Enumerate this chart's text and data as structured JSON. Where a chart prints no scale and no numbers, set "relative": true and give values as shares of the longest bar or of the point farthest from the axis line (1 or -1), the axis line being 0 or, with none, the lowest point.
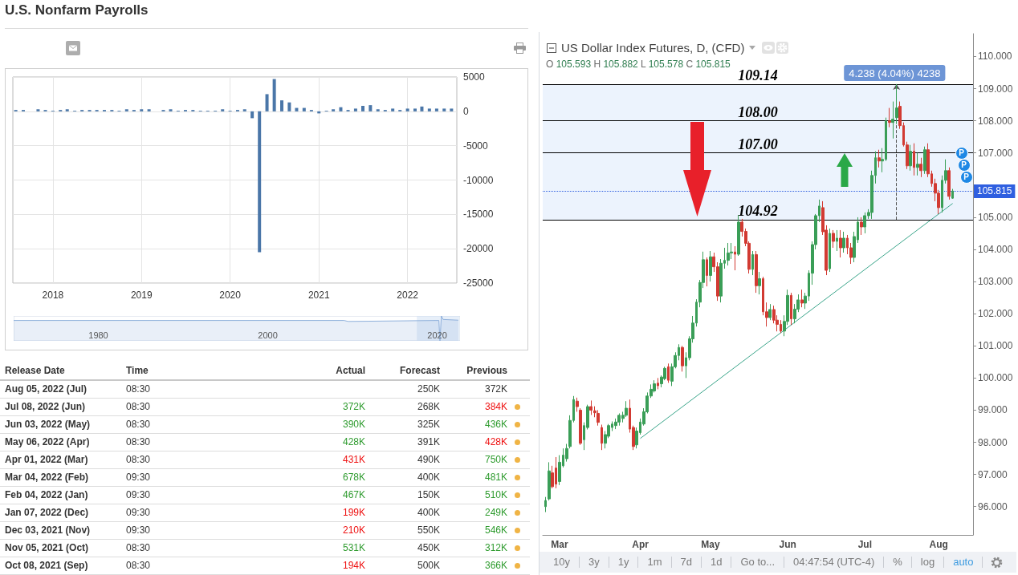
{
  "chart_data": [
    {
      "type": "bar",
      "title": "U.S. Nonfarm Payrolls",
      "x": [
        "2017-08",
        "2017-09",
        "2017-10",
        "2017-11",
        "2017-12",
        "2018-01",
        "2018-02",
        "2018-03",
        "2018-04",
        "2018-05",
        "2018-06",
        "2018-07",
        "2018-08",
        "2018-09",
        "2018-10",
        "2018-11",
        "2018-12",
        "2019-01",
        "2019-02",
        "2019-03",
        "2019-04",
        "2019-05",
        "2019-06",
        "2019-07",
        "2019-08",
        "2019-09",
        "2019-10",
        "2019-11",
        "2019-12",
        "2020-01",
        "2020-02",
        "2020-03",
        "2020-04",
        "2020-05",
        "2020-06",
        "2020-07",
        "2020-08",
        "2020-09",
        "2020-10",
        "2020-11",
        "2020-12",
        "2021-01",
        "2021-02",
        "2021-03",
        "2021-04",
        "2021-05",
        "2021-06",
        "2021-07",
        "2021-08",
        "2021-09",
        "2021-10",
        "2021-11",
        "2021-12",
        "2022-01",
        "2022-02",
        "2022-03",
        "2022-04",
        "2022-05",
        "2022-06",
        "2022-07"
      ],
      "values": [
        200,
        200,
        0,
        300,
        200,
        100,
        200,
        300,
        100,
        200,
        200,
        200,
        200,
        200,
        100,
        300,
        200,
        300,
        300,
        0,
        200,
        300,
        100,
        200,
        200,
        100,
        100,
        100,
        300,
        100,
        200,
        300,
        -1000,
        -20500,
        2500,
        4700,
        1600,
        1300,
        500,
        500,
        200,
        -300,
        100,
        300,
        600,
        200,
        400,
        800,
        900,
        300,
        200,
        400,
        200,
        400,
        400,
        700,
        400,
        400,
        400,
        400
      ],
      "color": "#4a76a8",
      "xlim": [
        "2017-07-20",
        "2022-07-23"
      ],
      "xticks": [
        "2018",
        "2019",
        "2020",
        "2021",
        "2022"
      ],
      "ylim": [
        -25000,
        5000
      ],
      "yticks": [
        -25000,
        -20000,
        -15000,
        -10000,
        -5000,
        0,
        5000
      ],
      "grid": true
    },
    {
      "type": "area",
      "relative": true,
      "x": [
        1970,
        2009,
        2009.5,
        2020.2,
        2020.33,
        2020.5,
        2020.7,
        2022.5
      ],
      "values": [
        0.82,
        0.82,
        0.78,
        0.82,
        0,
        1,
        0.86,
        0.83
      ],
      "color": "#8fb0db",
      "xlim": [
        1970,
        2022.7
      ],
      "xticks": [
        1980,
        2000,
        2020
      ],
      "bands": [
        {
          "axis": "x",
          "from": 2017.6,
          "to": 2022.6,
          "color": "#cfe0f4"
        }
      ]
    },
    {
      "type": "other",
      "ylabel": "Release Date",
      "categories": [
        "Aug 05, 2022 (Jul)",
        "Jul 08, 2022 (Jun)",
        "Jun 03, 2022 (May)",
        "May 06, 2022 (Apr)",
        "Apr 01, 2022 (Mar)",
        "Mar 04, 2022 (Feb)",
        "Feb 04, 2022 (Jan)",
        "Jan 07, 2022 (Dec)",
        "Dec 03, 2021 (Nov)",
        "Nov 05, 2021 (Oct)",
        "Oct 08, 2021 (Sep)"
      ],
      "series": [
        {
          "name": "Time",
          "color": "#333333",
          "values": [
            8.5,
            8.5,
            8.5,
            8.5,
            8.5,
            9.5,
            9.5,
            9.5,
            9.5,
            8.5,
            8.5
          ],
          "value_labels": [
            "08:30",
            "08:30",
            "08:30",
            "08:30",
            "08:30",
            "09:30",
            "09:30",
            "09:30",
            "09:30",
            "08:30",
            "08:30"
          ]
        },
        {
          "name": "Actual",
          "values": [
            null,
            372,
            390,
            428,
            431,
            678,
            467,
            199,
            210,
            531,
            194
          ],
          "value_labels": [
            null,
            "372K",
            "390K",
            "428K",
            "431K",
            "678K",
            "467K",
            "199K",
            "210K",
            "531K",
            "194K"
          ],
          "colors": [
            null,
            "#2e9b2e",
            "#2e9b2e",
            "#2e9b2e",
            "#ee1111",
            "#2e9b2e",
            "#2e9b2e",
            "#ee1111",
            "#ee1111",
            "#2e9b2e",
            "#ee1111"
          ]
        },
        {
          "name": "Forecast",
          "color": "#333333",
          "values": [
            250,
            268,
            325,
            391,
            490,
            400,
            150,
            400,
            550,
            450,
            500
          ],
          "value_labels": [
            "250K",
            "268K",
            "325K",
            "391K",
            "490K",
            "400K",
            "150K",
            "400K",
            "550K",
            "450K",
            "500K"
          ]
        },
        {
          "name": "Previous",
          "values": [
            372,
            384,
            436,
            428,
            750,
            481,
            510,
            249,
            546,
            312,
            366
          ],
          "value_labels": [
            "372K",
            "384K",
            "436K",
            "428K",
            "750K",
            "481K",
            "510K",
            "249K",
            "546K",
            "312K",
            "366K"
          ],
          "colors": [
            "#333333",
            "#ee1111",
            "#2e9b2e",
            "#ee1111",
            "#2e9b2e",
            "#2e9b2e",
            "#2e9b2e",
            "#2e9b2e",
            "#2e9b2e",
            "#2e9b2e",
            "#2e9b2e"
          ]
        }
      ]
    },
    {
      "type": "candlestick",
      "title": "US Dollar Index Futures, D, (CFD)",
      "subtitle": "O 105.593 H 105.882 L 105.578 C 105.815",
      "categories": [
        null,
        null,
        null,
        null,
        "Mar",
        null,
        null,
        null,
        null,
        null,
        null,
        null,
        null,
        null,
        null,
        null,
        null,
        null,
        null,
        null,
        null,
        null,
        null,
        null,
        null,
        null,
        null,
        "Apr",
        null,
        null,
        null,
        null,
        null,
        null,
        null,
        null,
        null,
        null,
        null,
        null,
        null,
        null,
        null,
        null,
        null,
        null,
        null,
        "May",
        null,
        null,
        null,
        null,
        null,
        null,
        null,
        null,
        null,
        null,
        null,
        null,
        null,
        null,
        null,
        null,
        null,
        null,
        null,
        null,
        null,
        "Jun",
        null,
        null,
        null,
        null,
        null,
        null,
        null,
        null,
        null,
        null,
        null,
        null,
        null,
        null,
        null,
        null,
        null,
        null,
        null,
        null,
        null,
        "Jul",
        null,
        null,
        null,
        null,
        null,
        null,
        null,
        null,
        null,
        null,
        null,
        null,
        null,
        null,
        null,
        null,
        null,
        null,
        null,
        null,
        "Aug",
        null,
        null,
        null,
        null
      ],
      "ohlc": [
        [
          96.0,
          96.3,
          95.83,
          96.19
        ],
        [
          96.24,
          97.38,
          96.19,
          97.11
        ],
        [
          97.05,
          97.27,
          96.57,
          96.62
        ],
        [
          97.2,
          97.54,
          96.57,
          96.7
        ],
        [
          96.78,
          97.6,
          96.67,
          97.38
        ],
        [
          97.27,
          97.81,
          97.22,
          97.6
        ],
        [
          97.49,
          97.95,
          97.4,
          97.81
        ],
        [
          97.87,
          98.84,
          97.81,
          98.68
        ],
        [
          98.68,
          99.44,
          98.62,
          99.33
        ],
        [
          99.28,
          99.39,
          98.95,
          99.11
        ],
        [
          99.0,
          99.06,
          97.92,
          97.97
        ],
        [
          98.08,
          98.62,
          97.76,
          98.52
        ],
        [
          98.46,
          99.17,
          98.4,
          99.11
        ],
        [
          99.11,
          99.3,
          98.85,
          99.0
        ],
        [
          98.98,
          99.12,
          98.78,
          98.92
        ],
        [
          98.9,
          99.0,
          98.52,
          98.62
        ],
        [
          98.46,
          98.55,
          97.76,
          97.97
        ],
        [
          97.97,
          98.35,
          97.81,
          98.24
        ],
        [
          98.19,
          98.57,
          98.13,
          98.52
        ],
        [
          98.46,
          98.65,
          98.35,
          98.57
        ],
        [
          98.52,
          98.74,
          98.41,
          98.63
        ],
        [
          98.63,
          98.9,
          98.52,
          98.84
        ],
        [
          98.74,
          98.95,
          98.62,
          98.84
        ],
        [
          98.84,
          99.28,
          98.79,
          99.06
        ],
        [
          99.06,
          99.33,
          98.3,
          98.41
        ],
        [
          98.46,
          98.52,
          97.76,
          97.87
        ],
        [
          97.92,
          98.46,
          97.81,
          98.35
        ],
        [
          98.3,
          98.74,
          98.24,
          98.63
        ],
        [
          98.57,
          99.06,
          98.52,
          98.95
        ],
        [
          98.95,
          99.55,
          98.9,
          99.44
        ],
        [
          99.44,
          99.8,
          99.38,
          99.65
        ],
        [
          99.6,
          99.93,
          99.55,
          99.82
        ],
        [
          99.84,
          100.0,
          99.65,
          99.76
        ],
        [
          99.82,
          100.08,
          99.71,
          100.03
        ],
        [
          99.98,
          100.35,
          99.93,
          100.3
        ],
        [
          100.35,
          100.45,
          99.85,
          99.93
        ],
        [
          99.9,
          100.45,
          99.75,
          100.35
        ],
        [
          100.35,
          100.8,
          100.3,
          100.7
        ],
        [
          100.7,
          101.05,
          100.55,
          100.95
        ],
        [
          100.95,
          101.0,
          100.2,
          100.38
        ],
        [
          100.38,
          100.8,
          100.0,
          100.63
        ],
        [
          100.63,
          101.3,
          100.55,
          101.22
        ],
        [
          101.22,
          101.93,
          101.1,
          101.71
        ],
        [
          101.71,
          102.45,
          101.6,
          102.36
        ],
        [
          102.36,
          103.05,
          102.2,
          102.97
        ],
        [
          102.97,
          103.93,
          102.8,
          103.68
        ],
        [
          103.68,
          103.75,
          102.85,
          103.19
        ],
        [
          103.19,
          103.95,
          103.0,
          103.77
        ],
        [
          103.77,
          103.9,
          103.3,
          103.46
        ],
        [
          103.46,
          103.6,
          102.4,
          102.55
        ],
        [
          102.55,
          103.7,
          102.35,
          103.57
        ],
        [
          103.57,
          104.05,
          103.4,
          103.66
        ],
        [
          103.66,
          104.2,
          103.5,
          103.89
        ],
        [
          103.89,
          104.2,
          103.7,
          103.92
        ],
        [
          103.92,
          104.1,
          103.35,
          103.85
        ],
        [
          103.85,
          105.07,
          103.8,
          104.85
        ],
        [
          104.85,
          104.95,
          104.4,
          104.56
        ],
        [
          104.56,
          104.65,
          104.1,
          104.19
        ],
        [
          104.19,
          104.25,
          103.25,
          103.38
        ],
        [
          103.38,
          103.95,
          103.2,
          103.84
        ],
        [
          103.84,
          103.95,
          102.65,
          102.87
        ],
        [
          102.87,
          103.3,
          102.6,
          103.09
        ],
        [
          103.09,
          103.15,
          101.95,
          102.06
        ],
        [
          102.06,
          102.35,
          101.6,
          101.88
        ],
        [
          101.88,
          102.3,
          101.8,
          102.13
        ],
        [
          102.13,
          102.25,
          101.7,
          101.8
        ],
        [
          101.8,
          101.95,
          101.45,
          101.67
        ],
        [
          101.67,
          101.8,
          101.4,
          101.46
        ],
        [
          101.46,
          101.95,
          101.3,
          101.76
        ],
        [
          101.76,
          102.75,
          101.65,
          102.57
        ],
        [
          102.57,
          102.65,
          101.65,
          101.84
        ],
        [
          101.84,
          102.3,
          101.7,
          102.14
        ],
        [
          102.14,
          102.6,
          102.05,
          102.43
        ],
        [
          102.43,
          102.75,
          102.2,
          102.33
        ],
        [
          102.33,
          102.65,
          102.15,
          102.55
        ],
        [
          102.55,
          103.35,
          102.4,
          103.26
        ],
        [
          103.26,
          104.25,
          102.9,
          104.15
        ],
        [
          104.15,
          105.1,
          104.0,
          105.05
        ],
        [
          105.05,
          105.55,
          104.85,
          105.35
        ],
        [
          105.3,
          105.5,
          104.45,
          104.55
        ],
        [
          104.6,
          104.75,
          103.2,
          103.35
        ],
        [
          103.4,
          104.65,
          103.3,
          104.5
        ],
        [
          104.5,
          104.6,
          104.05,
          104.25
        ],
        [
          104.25,
          104.6,
          103.95,
          104.35
        ],
        [
          104.35,
          104.6,
          103.75,
          104.05
        ],
        [
          104.05,
          104.55,
          103.9,
          104.35
        ],
        [
          104.35,
          104.45,
          103.85,
          104.05
        ],
        [
          104.05,
          104.2,
          103.55,
          103.75
        ],
        [
          103.75,
          104.55,
          103.6,
          104.4
        ],
        [
          104.3,
          105.0,
          104.2,
          104.85
        ],
        [
          104.85,
          105.0,
          104.45,
          104.7
        ],
        [
          104.7,
          105.15,
          104.5,
          105.05
        ],
        [
          105.05,
          105.25,
          104.95,
          105.15
        ],
        [
          105.15,
          106.45,
          104.95,
          106.3
        ],
        [
          106.3,
          107.05,
          106.05,
          106.85
        ],
        [
          106.85,
          107.1,
          106.55,
          106.75
        ],
        [
          106.75,
          107.15,
          106.4,
          106.8
        ],
        [
          106.8,
          108.1,
          106.75,
          108.0
        ],
        [
          108.0,
          108.4,
          107.8,
          107.95
        ],
        [
          107.95,
          108.6,
          107.45,
          108.05
        ],
        [
          108.1,
          109.14,
          107.9,
          108.4
        ],
        [
          108.45,
          108.6,
          107.75,
          107.85
        ],
        [
          107.85,
          107.95,
          107.2,
          107.25
        ],
        [
          107.25,
          107.35,
          106.5,
          106.6
        ],
        [
          106.6,
          107.25,
          106.45,
          107.05
        ],
        [
          107.05,
          107.3,
          106.3,
          106.55
        ],
        [
          106.55,
          107.0,
          106.3,
          106.65
        ],
        [
          106.65,
          106.85,
          106.25,
          106.45
        ],
        [
          106.45,
          107.2,
          106.35,
          107.1
        ],
        [
          107.1,
          107.3,
          106.25,
          106.35
        ],
        [
          106.35,
          106.45,
          105.95,
          106.05
        ],
        [
          106.05,
          106.2,
          105.5,
          105.75
        ],
        [
          105.75,
          105.85,
          105.1,
          105.3
        ],
        [
          105.3,
          106.3,
          105.15,
          106.15
        ],
        [
          106.15,
          106.8,
          106.05,
          106.45
        ],
        [
          106.45,
          106.55,
          105.55,
          105.65
        ],
        [
          105.593,
          105.882,
          105.578,
          105.815
        ]
      ],
      "colors": [
        "#3a9e57",
        "#3a9e57",
        "#d23a32",
        "#d23a32",
        "#3a9e57",
        "#3a9e57",
        "#3a9e57",
        "#3a9e57",
        "#3a9e57",
        "#d23a32",
        "#d23a32",
        "#3a9e57",
        "#3a9e57",
        "#d23a32",
        "#d23a32",
        "#d23a32",
        "#d23a32",
        "#3a9e57",
        "#3a9e57",
        "#3a9e57",
        "#3a9e57",
        "#3a9e57",
        "#3a9e57",
        "#3a9e57",
        "#d23a32",
        "#d23a32",
        "#3a9e57",
        "#3a9e57",
        "#3a9e57",
        "#3a9e57",
        "#3a9e57",
        "#3a9e57",
        "#d23a32",
        "#3a9e57",
        "#3a9e57",
        "#d23a32",
        "#3a9e57",
        "#3a9e57",
        "#3a9e57",
        "#d23a32",
        "#3a9e57",
        "#3a9e57",
        "#3a9e57",
        "#3a9e57",
        "#3a9e57",
        "#3a9e57",
        "#d23a32",
        "#3a9e57",
        "#d23a32",
        "#d23a32",
        "#3a9e57",
        "#3a9e57",
        "#3a9e57",
        "#3a9e57",
        "#d23a32",
        "#3a9e57",
        "#d23a32",
        "#d23a32",
        "#d23a32",
        "#3a9e57",
        "#d23a32",
        "#3a9e57",
        "#d23a32",
        "#d23a32",
        "#3a9e57",
        "#d23a32",
        "#d23a32",
        "#d23a32",
        "#3a9e57",
        "#3a9e57",
        "#d23a32",
        "#3a9e57",
        "#3a9e57",
        "#d23a32",
        "#3a9e57",
        "#3a9e57",
        "#3a9e57",
        "#3a9e57",
        "#3a9e57",
        "#d23a32",
        "#d23a32",
        "#3a9e57",
        "#d23a32",
        "#3a9e57",
        "#d23a32",
        "#3a9e57",
        "#d23a32",
        "#d23a32",
        "#3a9e57",
        "#3a9e57",
        "#d23a32",
        "#3a9e57",
        "#3a9e57",
        "#3a9e57",
        "#3a9e57",
        "#d23a32",
        "#3a9e57",
        "#3a9e57",
        "#d23a32",
        "#3a9e57",
        "#3a9e57",
        "#d23a32",
        "#d23a32",
        "#d23a32",
        "#3a9e57",
        "#d23a32",
        "#3a9e57",
        "#d23a32",
        "#3a9e57",
        "#d23a32",
        "#d23a32",
        "#d23a32",
        "#d23a32",
        "#3a9e57",
        "#3a9e57",
        "#d23a32",
        "#3a9e57"
      ],
      "series": [
        {
          "type": "line",
          "color": "#3aa58a",
          "values": [
            null,
            null,
            null,
            null,
            null,
            null,
            null,
            null,
            null,
            null,
            null,
            null,
            null,
            null,
            null,
            null,
            null,
            null,
            null,
            null,
            null,
            null,
            null,
            null,
            null,
            null,
            null,
            98.12,
            null,
            null,
            null,
            null,
            null,
            null,
            null,
            null,
            null,
            null,
            null,
            null,
            null,
            null,
            null,
            null,
            null,
            null,
            null,
            null,
            null,
            null,
            null,
            null,
            null,
            null,
            null,
            null,
            null,
            null,
            null,
            null,
            null,
            null,
            null,
            null,
            null,
            null,
            null,
            null,
            null,
            null,
            null,
            null,
            null,
            null,
            null,
            null,
            null,
            null,
            null,
            null,
            null,
            null,
            null,
            null,
            null,
            null,
            null,
            null,
            null,
            null,
            null,
            null,
            null,
            null,
            null,
            null,
            null,
            null,
            null,
            null,
            null,
            null,
            null,
            null,
            null,
            null,
            null,
            null,
            null,
            null,
            null,
            null,
            null,
            null,
            null,
            null,
            105.43
          ]
        }
      ],
      "ylim": [
        95.12,
        110.71
      ],
      "yticks": [
        {
          "value": 96,
          "label": "96.000"
        },
        {
          "value": 97,
          "label": "97.000"
        },
        {
          "value": 98,
          "label": "98.000"
        },
        {
          "value": 99,
          "label": "99.000"
        },
        {
          "value": 100,
          "label": "100.000"
        },
        {
          "value": 101,
          "label": "101.000"
        },
        {
          "value": 102,
          "label": "102.000"
        },
        {
          "value": 103,
          "label": "103.000"
        },
        {
          "value": 104,
          "label": "104.000"
        },
        {
          "value": 105,
          "label": "105.000"
        },
        {
          "value": 107,
          "label": "107.000"
        },
        {
          "value": 108,
          "label": "108.000"
        },
        {
          "value": 109,
          "label": "109.000"
        },
        {
          "value": 110,
          "label": "110.000"
        }
      ],
      "ref_lines": [
        {
          "axis": "y",
          "value": 109.14,
          "label": "109.14",
          "color": "#000000"
        },
        {
          "axis": "y",
          "value": 108,
          "label": "108.00",
          "color": "#000000"
        },
        {
          "axis": "y",
          "value": 107,
          "label": "107.00",
          "color": "#000000"
        },
        {
          "axis": "y",
          "value": 104.92,
          "label": "104.92",
          "color": "#000000"
        },
        {
          "axis": "y",
          "value": 105.815,
          "label": "105.815",
          "color": "#2f5fe0",
          "line_style": "dotted"
        }
      ],
      "bands": [
        {
          "axis": "y",
          "from": 104.92,
          "to": 109.14,
          "label": "4.238 (4.04%) 4238",
          "color": "#dceafb"
        }
      ],
      "annotations": [
        "P",
        "P",
        "P",
        "10y",
        "3y",
        "1y",
        "1m",
        "7d",
        "1d",
        "Go to...",
        "04:47:54 (UTC-4)",
        "%",
        "log",
        "auto"
      ]
    }
  ]
}
